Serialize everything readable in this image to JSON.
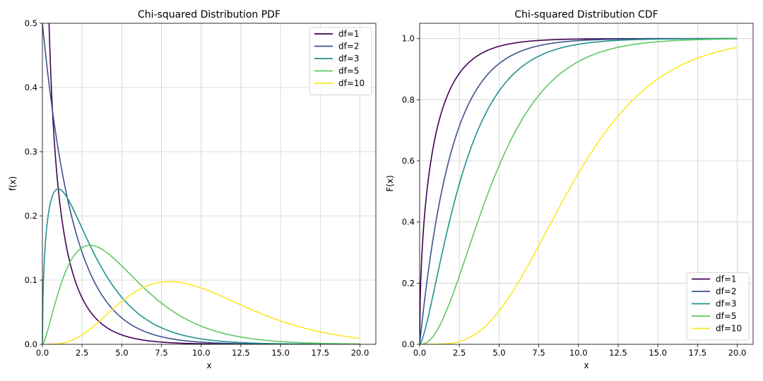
{
  "chart_data": [
    {
      "type": "line",
      "title": "Chi-squared Distribution PDF",
      "xlabel": "x",
      "ylabel": "f(x)",
      "function": "pdf",
      "xlim": [
        0,
        21
      ],
      "ylim": [
        0,
        0.5
      ],
      "xticks": [
        "0.0",
        "2.5",
        "5.0",
        "7.5",
        "10.0",
        "12.5",
        "15.0",
        "17.5",
        "20.0"
      ],
      "yticks": [
        "0.0",
        "0.1",
        "0.2",
        "0.3",
        "0.4",
        "0.5"
      ],
      "grid": true,
      "legend": "top-right",
      "x_range": [
        0,
        20
      ],
      "series": [
        {
          "name": "df=1",
          "df": 1,
          "color": "#440154"
        },
        {
          "name": "df=2",
          "df": 2,
          "color": "#3b528b"
        },
        {
          "name": "df=3",
          "df": 3,
          "color": "#21918c"
        },
        {
          "name": "df=5",
          "df": 5,
          "color": "#5ec962"
        },
        {
          "name": "df=10",
          "df": 10,
          "color": "#fde725"
        }
      ]
    },
    {
      "type": "line",
      "title": "Chi-squared Distribution CDF",
      "xlabel": "x",
      "ylabel": "F(x)",
      "function": "cdf",
      "xlim": [
        0,
        21
      ],
      "ylim": [
        0,
        1.05
      ],
      "xticks": [
        "0.0",
        "2.5",
        "5.0",
        "7.5",
        "10.0",
        "12.5",
        "15.0",
        "17.5",
        "20.0"
      ],
      "yticks": [
        "0.0",
        "0.2",
        "0.4",
        "0.6",
        "0.8",
        "1.0"
      ],
      "grid": true,
      "legend": "bottom-right",
      "x_range": [
        0,
        20
      ],
      "series": [
        {
          "name": "df=1",
          "df": 1,
          "color": "#440154"
        },
        {
          "name": "df=2",
          "df": 2,
          "color": "#3b528b"
        },
        {
          "name": "df=3",
          "df": 3,
          "color": "#21918c"
        },
        {
          "name": "df=5",
          "df": 5,
          "color": "#5ec962"
        },
        {
          "name": "df=10",
          "df": 10,
          "color": "#fde725"
        }
      ]
    }
  ]
}
